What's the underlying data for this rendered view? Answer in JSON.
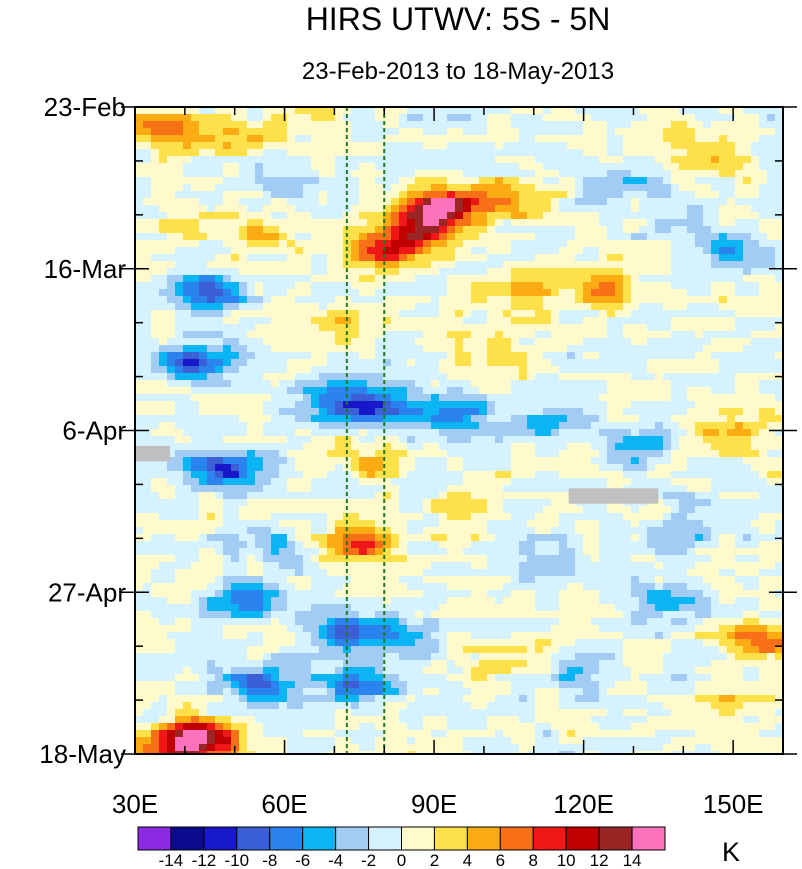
{
  "chart_data": {
    "type": "heatmap",
    "title": "HIRS UTWV: 5S - 5N",
    "subtitle": "23-Feb-2013 to 18-May-2013",
    "x_axis": {
      "range": [
        30,
        160
      ],
      "tick_values": [
        30,
        60,
        90,
        120,
        150
      ],
      "tick_labels": [
        "30E",
        "60E",
        "90E",
        "120E",
        "150E"
      ],
      "minor_step": 10
    },
    "y_axis": {
      "range_days": [
        0,
        84
      ],
      "tick_days": [
        0,
        21,
        42,
        63,
        84
      ],
      "tick_labels": [
        "23-Feb",
        "16-Mar",
        "6-Apr",
        "27-Apr",
        "18-May"
      ],
      "minor_step_days": 7
    },
    "reference_lines_lon": [
      72.5,
      80
    ],
    "missing_regions": [
      {
        "lon": [
          30,
          37
        ],
        "day": [
          44,
          46
        ]
      },
      {
        "lon": [
          117,
          135
        ],
        "day": [
          49.5,
          51.5
        ]
      }
    ],
    "colorbar": {
      "unit": "K",
      "levels": [
        -14,
        -12,
        -10,
        -8,
        -6,
        -4,
        -2,
        0,
        2,
        4,
        6,
        8,
        10,
        12,
        14
      ],
      "labels": [
        "-14",
        "-12",
        "-10",
        "-8",
        "-6",
        "-4",
        "-2",
        "0",
        "2",
        "4",
        "6",
        "8",
        "10",
        "12",
        "14"
      ],
      "colors": [
        "#8a2be2",
        "#0a0a8c",
        "#1717cc",
        "#3a5fd6",
        "#2b84ee",
        "#0bb4f2",
        "#a2ccf4",
        "#d4f2ff",
        "#fffacb",
        "#fde04a",
        "#fbac13",
        "#f77018",
        "#ef1717",
        "#c00000",
        "#9a2525",
        "#fd71bd"
      ]
    },
    "anomaly_features": [
      {
        "lon": 35,
        "day": 3,
        "value": 6
      },
      {
        "lon": 48,
        "day": 4,
        "value": 4
      },
      {
        "lon": 65,
        "day": 2,
        "value": 3
      },
      {
        "lon": 92,
        "day": 13,
        "value": 14
      },
      {
        "lon": 86,
        "day": 16,
        "value": 10
      },
      {
        "lon": 104,
        "day": 12,
        "value": 6
      },
      {
        "lon": 80,
        "day": 19,
        "value": 8
      },
      {
        "lon": 55,
        "day": 17,
        "value": 4
      },
      {
        "lon": 40,
        "day": 15,
        "value": 3
      },
      {
        "lon": 125,
        "day": 24,
        "value": 6
      },
      {
        "lon": 108,
        "day": 24,
        "value": 5
      },
      {
        "lon": 70,
        "day": 28,
        "value": 3
      },
      {
        "lon": 45,
        "day": 24,
        "value": -8
      },
      {
        "lon": 145,
        "day": 7,
        "value": 3
      },
      {
        "lon": 128,
        "day": 10,
        "value": -4
      },
      {
        "lon": 150,
        "day": 19,
        "value": -5
      },
      {
        "lon": 140,
        "day": 15,
        "value": -4
      },
      {
        "lon": 42,
        "day": 33,
        "value": -10
      },
      {
        "lon": 70,
        "day": 38,
        "value": -8
      },
      {
        "lon": 80,
        "day": 39,
        "value": -8
      },
      {
        "lon": 95,
        "day": 40,
        "value": -6
      },
      {
        "lon": 112,
        "day": 41,
        "value": -4
      },
      {
        "lon": 130,
        "day": 44,
        "value": -6
      },
      {
        "lon": 48,
        "day": 47,
        "value": -10
      },
      {
        "lon": 150,
        "day": 42,
        "value": 6
      },
      {
        "lon": 78,
        "day": 46,
        "value": 4
      },
      {
        "lon": 75,
        "day": 57,
        "value": 8
      },
      {
        "lon": 96,
        "day": 52,
        "value": 3
      },
      {
        "lon": 58,
        "day": 57,
        "value": -4
      },
      {
        "lon": 140,
        "day": 55,
        "value": -3
      },
      {
        "lon": 112,
        "day": 59,
        "value": -4
      },
      {
        "lon": 136,
        "day": 64,
        "value": -5
      },
      {
        "lon": 155,
        "day": 69,
        "value": 8
      },
      {
        "lon": 52,
        "day": 64,
        "value": -6
      },
      {
        "lon": 72,
        "day": 68,
        "value": -8
      },
      {
        "lon": 85,
        "day": 69,
        "value": -6
      },
      {
        "lon": 55,
        "day": 75,
        "value": -8
      },
      {
        "lon": 75,
        "day": 75,
        "value": -8
      },
      {
        "lon": 120,
        "day": 74,
        "value": -4
      },
      {
        "lon": 150,
        "day": 77,
        "value": 3
      },
      {
        "lon": 105,
        "day": 71,
        "value": 3
      },
      {
        "lon": 43,
        "day": 82,
        "value": 14
      },
      {
        "lon": 38,
        "day": 84,
        "value": 8
      },
      {
        "lon": 100,
        "day": 31,
        "value": 3
      },
      {
        "lon": 60,
        "day": 9,
        "value": -3
      },
      {
        "lon": 90,
        "day": 2,
        "value": -2
      },
      {
        "lon": 135,
        "day": 3,
        "value": 2
      }
    ]
  }
}
